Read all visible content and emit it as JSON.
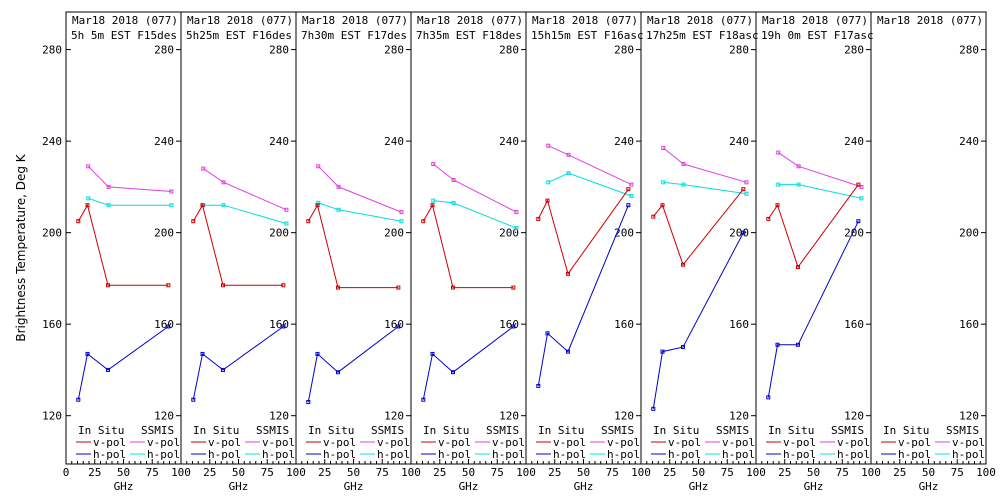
{
  "y_axis_label": "Brightness Temperature, Deg K",
  "x_axis_label": "GHz",
  "x_ticks": [
    0,
    25,
    50,
    75,
    100
  ],
  "y_ticks": [
    120,
    160,
    200,
    240,
    280
  ],
  "legend": {
    "in_situ_label": "In Situ",
    "ssmis_label": "SSMIS",
    "vpol_label": "v-pol",
    "hpol_label": "h-pol"
  },
  "colors": {
    "in_situ_v": "#cc0000",
    "in_situ_h": "#0000cc",
    "ssmis_v": "#e040e0",
    "ssmis_h": "#00e0e0"
  },
  "chart_data": {
    "type": "line",
    "xlim": [
      0,
      100
    ],
    "ylim": [
      112,
      296
    ],
    "panels": [
      {
        "date": "Mar18 2018 (077)",
        "subtitle": "5h 5m EST F15des",
        "in_situ_v": {
          "x": [
            10.7,
            18.7,
            36.5,
            89
          ],
          "y": [
            205,
            212,
            177,
            177
          ]
        },
        "in_situ_h": {
          "x": [
            10.7,
            18.7,
            36.5,
            89
          ],
          "y": [
            127,
            147,
            140,
            159
          ]
        },
        "ssmis_v": {
          "x": [
            19.35,
            37,
            91.655
          ],
          "y": [
            229,
            220,
            218
          ]
        },
        "ssmis_h": {
          "x": [
            19.35,
            37,
            91.655
          ],
          "y": [
            215,
            212,
            212
          ]
        }
      },
      {
        "date": "Mar18 2018 (077)",
        "subtitle": "5h25m EST F16des",
        "in_situ_v": {
          "x": [
            10.7,
            18.7,
            36.5,
            89
          ],
          "y": [
            205,
            212,
            177,
            177
          ]
        },
        "in_situ_h": {
          "x": [
            10.7,
            18.7,
            36.5,
            89
          ],
          "y": [
            127,
            147,
            140,
            159
          ]
        },
        "ssmis_v": {
          "x": [
            19.35,
            37,
            91.655
          ],
          "y": [
            228,
            222,
            210
          ]
        },
        "ssmis_h": {
          "x": [
            19.35,
            37,
            91.655
          ],
          "y": [
            212,
            212,
            204
          ]
        }
      },
      {
        "date": "Mar18 2018 (077)",
        "subtitle": "7h30m EST F17des",
        "in_situ_v": {
          "x": [
            10.7,
            18.7,
            36.5,
            89
          ],
          "y": [
            205,
            212,
            176,
            176
          ]
        },
        "in_situ_h": {
          "x": [
            10.7,
            18.7,
            36.5,
            89
          ],
          "y": [
            126,
            147,
            139,
            159
          ]
        },
        "ssmis_v": {
          "x": [
            19.35,
            37,
            91.655
          ],
          "y": [
            229,
            220,
            209
          ]
        },
        "ssmis_h": {
          "x": [
            19.35,
            37,
            91.655
          ],
          "y": [
            213,
            210,
            205
          ]
        }
      },
      {
        "date": "Mar18 2018 (077)",
        "subtitle": "7h35m EST F18des",
        "in_situ_v": {
          "x": [
            10.7,
            18.7,
            36.5,
            89
          ],
          "y": [
            205,
            212,
            176,
            176
          ]
        },
        "in_situ_h": {
          "x": [
            10.7,
            18.7,
            36.5,
            89
          ],
          "y": [
            127,
            147,
            139,
            159
          ]
        },
        "ssmis_v": {
          "x": [
            19.35,
            37,
            91.655
          ],
          "y": [
            230,
            223,
            209
          ]
        },
        "ssmis_h": {
          "x": [
            19.35,
            37,
            91.655
          ],
          "y": [
            214,
            213,
            202
          ]
        }
      },
      {
        "date": "Mar18 2018 (077)",
        "subtitle": "15h15m EST F16asc",
        "in_situ_v": {
          "x": [
            10.7,
            18.7,
            36.5,
            89
          ],
          "y": [
            206,
            214,
            182,
            219
          ]
        },
        "in_situ_h": {
          "x": [
            10.7,
            18.7,
            36.5,
            89
          ],
          "y": [
            133,
            156,
            148,
            212
          ]
        },
        "ssmis_v": {
          "x": [
            19.35,
            37,
            91.655
          ],
          "y": [
            238,
            234,
            221
          ]
        },
        "ssmis_h": {
          "x": [
            19.35,
            37,
            91.655
          ],
          "y": [
            222,
            226,
            216
          ]
        }
      },
      {
        "date": "Mar18 2018 (077)",
        "subtitle": "17h25m EST F18asc",
        "in_situ_v": {
          "x": [
            10.7,
            18.7,
            36.5,
            89
          ],
          "y": [
            207,
            212,
            186,
            219
          ]
        },
        "in_situ_h": {
          "x": [
            10.7,
            18.7,
            36.5,
            89
          ],
          "y": [
            123,
            148,
            150,
            200
          ]
        },
        "ssmis_v": {
          "x": [
            19.35,
            37,
            91.655
          ],
          "y": [
            237,
            230,
            222
          ]
        },
        "ssmis_h": {
          "x": [
            19.35,
            37,
            91.655
          ],
          "y": [
            222,
            221,
            217
          ]
        }
      },
      {
        "date": "Mar18 2018 (077)",
        "subtitle": "19h 0m EST F17asc",
        "in_situ_v": {
          "x": [
            10.7,
            18.7,
            36.5,
            89
          ],
          "y": [
            206,
            212,
            185,
            221
          ]
        },
        "in_situ_h": {
          "x": [
            10.7,
            18.7,
            36.5,
            89
          ],
          "y": [
            128,
            151,
            151,
            205
          ]
        },
        "ssmis_v": {
          "x": [
            19.35,
            37,
            91.655
          ],
          "y": [
            235,
            229,
            220
          ]
        },
        "ssmis_h": {
          "x": [
            19.35,
            37,
            91.655
          ],
          "y": [
            221,
            221,
            215
          ]
        }
      },
      {
        "date": "Mar18 2018 (077)",
        "subtitle": "",
        "in_situ_v": {
          "x": [],
          "y": []
        },
        "in_situ_h": {
          "x": [],
          "y": []
        },
        "ssmis_v": {
          "x": [],
          "y": []
        },
        "ssmis_h": {
          "x": [],
          "y": []
        }
      }
    ]
  }
}
